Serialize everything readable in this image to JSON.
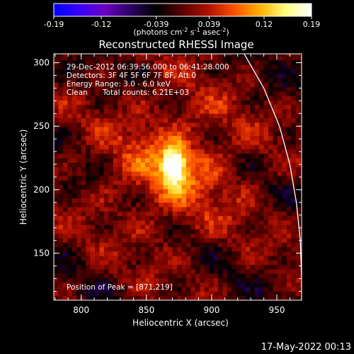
{
  "chart_data": {
    "type": "heatmap",
    "title": "Reconstructed RHESSI Image",
    "xlabel": "Heliocentric X (arcsec)",
    "ylabel": "Heliocentric Y (arcsec)",
    "xlim": [
      779,
      969
    ],
    "ylim": [
      113,
      307
    ],
    "x_ticks": [
      "800",
      "850",
      "900",
      "950"
    ],
    "x_tick_values": [
      800,
      850,
      900,
      950
    ],
    "y_ticks": [
      "150",
      "200",
      "250",
      "300"
    ],
    "y_tick_values": [
      150,
      200,
      250,
      300
    ],
    "colorbar": {
      "range": [
        -0.19,
        0.19
      ],
      "tick_labels": [
        "-0.19",
        "-0.12",
        "-0.039",
        "0.039",
        "0.12",
        "0.19"
      ],
      "tick_values": [
        -0.19,
        -0.12,
        -0.039,
        0.039,
        0.12,
        0.19
      ],
      "unit_label": "(photons cm",
      "unit_sup1": "-2",
      "unit_mid": " s",
      "unit_sup2": "-1",
      "unit_mid2": " asec",
      "unit_sup3": "-2",
      "unit_end": ")",
      "colors": [
        "#0000ff",
        "#3a00ff",
        "#6a00c0",
        "#2a0060",
        "#000000",
        "#5a0000",
        "#b01000",
        "#ff5000",
        "#ffb000",
        "#ffff80",
        "#ffffff"
      ]
    },
    "peak": {
      "x": 871,
      "y": 219,
      "value": 0.19
    },
    "limb": [
      [
        925,
        307
      ],
      [
        940,
        280
      ],
      [
        952,
        250
      ],
      [
        960,
        220
      ],
      [
        965,
        190
      ],
      [
        968,
        160
      ],
      [
        969,
        130
      ],
      [
        969,
        113
      ]
    ],
    "annotations": {
      "time": "29-Dec-2012 06:39:56.000 to 06:41:28.000",
      "detectors": "Detectors: 3F 4F 5F 6F 7F 8F, Att 0",
      "energy": "Energy Range: 3.0 - 6.0 keV",
      "clean": "Clean",
      "counts": "Total counts: 6.21E+03",
      "peak_label": "Position of Peak = [871,219]"
    },
    "grid": false,
    "legend": "none"
  },
  "footer": {
    "datetime": "17-May-2022 00:13"
  }
}
